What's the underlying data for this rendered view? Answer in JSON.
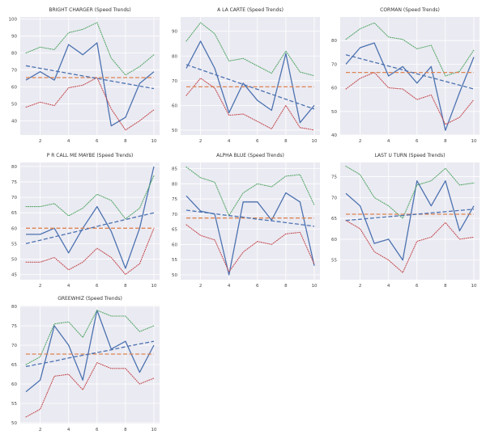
{
  "colors": {
    "plot_bg": "#eaeaf2",
    "grid": "#ffffff",
    "blue": "#4c72b0",
    "orange": "#dd8452",
    "green": "#55a868",
    "red": "#c44e52"
  },
  "chart_data": [
    {
      "type": "line",
      "title": "BRIGHT CHARGER (Speed Trends)",
      "x": [
        1,
        2,
        3,
        4,
        5,
        6,
        7,
        8,
        9,
        10
      ],
      "xticks": [
        2,
        4,
        6,
        8,
        10
      ],
      "xlim": [
        0.6,
        10.4
      ],
      "ylim": [
        31.6,
        101.3
      ],
      "yticks": [
        40,
        50,
        60,
        70,
        80,
        90,
        100
      ],
      "grid": true,
      "series": [
        {
          "style": "solid",
          "color": "#4c72b0",
          "values": [
            64,
            69,
            64,
            85,
            79,
            86,
            37,
            42,
            62,
            69
          ]
        },
        {
          "style": "dotted",
          "color": "#55a868",
          "values": [
            80,
            83.5,
            82,
            92,
            94,
            98,
            77,
            67,
            72,
            79
          ]
        },
        {
          "style": "dotted",
          "color": "#c44e52",
          "values": [
            48,
            51,
            49,
            59.5,
            61,
            65.5,
            47,
            34.5,
            40,
            46.5
          ]
        },
        {
          "style": "dashed",
          "color": "#dd8452",
          "values": [
            65.5,
            65.5,
            65.5,
            65.5,
            65.5,
            65.5,
            65.5,
            65.5,
            65.5,
            65.5
          ]
        },
        {
          "style": "dashed",
          "color": "#4c72b0",
          "values": [
            72.5,
            71,
            69.5,
            68,
            66.5,
            65,
            63.5,
            62,
            60.5,
            59
          ]
        }
      ]
    },
    {
      "type": "line",
      "title": "A LA CARTE (Speed Trends)",
      "x": [
        1,
        2,
        3,
        4,
        5,
        6,
        7,
        8,
        9,
        10
      ],
      "xticks": [
        2,
        4,
        6,
        8,
        10
      ],
      "xlim": [
        0.6,
        10.4
      ],
      "ylim": [
        48,
        95.8
      ],
      "yticks": [
        50,
        60,
        70,
        80,
        90
      ],
      "grid": true,
      "series": [
        {
          "style": "solid",
          "color": "#4c72b0",
          "values": [
            75,
            86,
            75,
            57,
            69,
            62,
            58,
            81,
            53,
            60
          ]
        },
        {
          "style": "dotted",
          "color": "#55a868",
          "values": [
            86,
            93.5,
            89,
            78,
            79,
            76,
            73,
            82,
            73.5,
            72
          ]
        },
        {
          "style": "dotted",
          "color": "#c44e52",
          "values": [
            64,
            71,
            67,
            56,
            56.5,
            53.5,
            50.5,
            60,
            51,
            50
          ]
        },
        {
          "style": "dashed",
          "color": "#dd8452",
          "values": [
            67.5,
            67.5,
            67.5,
            67.5,
            67.5,
            67.5,
            67.5,
            67.5,
            67.5,
            67.5
          ]
        },
        {
          "style": "dashed",
          "color": "#4c72b0",
          "values": [
            76.5,
            74.5,
            72.5,
            70.5,
            68.5,
            66.5,
            64.5,
            62.5,
            60.5,
            58.5
          ]
        }
      ]
    },
    {
      "type": "line",
      "title": "CORMAN (Speed Trends)",
      "x": [
        1,
        2,
        3,
        4,
        5,
        6,
        7,
        8,
        9,
        10
      ],
      "xticks": [
        2,
        4,
        6,
        8,
        10
      ],
      "xlim": [
        0.6,
        10.4
      ],
      "ylim": [
        40,
        90
      ],
      "yticks": [
        40,
        50,
        60,
        70,
        80
      ],
      "grid": true,
      "series": [
        {
          "style": "solid",
          "color": "#4c72b0",
          "values": [
            70,
            77,
            79,
            65,
            69,
            62,
            69,
            42,
            58,
            73
          ]
        },
        {
          "style": "dotted",
          "color": "#55a868",
          "values": [
            80.5,
            85,
            87.5,
            81.5,
            80.5,
            76.5,
            78,
            65,
            67,
            76
          ]
        },
        {
          "style": "dotted",
          "color": "#c44e52",
          "values": [
            59.5,
            64,
            66.5,
            60,
            59.5,
            55,
            57,
            44.5,
            47.5,
            55
          ]
        },
        {
          "style": "dashed",
          "color": "#dd8452",
          "values": [
            66.5,
            66.5,
            66.5,
            66.5,
            66.5,
            66.5,
            66.5,
            66.5,
            66.5,
            66.5
          ]
        },
        {
          "style": "dashed",
          "color": "#4c72b0",
          "values": [
            74,
            72.4,
            70.8,
            69.2,
            67.6,
            65.9,
            64.3,
            62.7,
            61.1,
            59.5
          ]
        }
      ]
    },
    {
      "type": "line",
      "title": "P R CALL ME MAYBE (Speed Trends)",
      "x": [
        1,
        2,
        3,
        4,
        5,
        6,
        7,
        8,
        9,
        10
      ],
      "xticks": [
        2,
        4,
        6,
        8,
        10
      ],
      "xlim": [
        0.6,
        10.4
      ],
      "ylim": [
        43.3,
        81.3
      ],
      "yticks": [
        45,
        50,
        55,
        60,
        65,
        70,
        75,
        80
      ],
      "grid": true,
      "series": [
        {
          "style": "solid",
          "color": "#4c72b0",
          "values": [
            58,
            58,
            60,
            52,
            60,
            67,
            59,
            47,
            60,
            80
          ]
        },
        {
          "style": "dotted",
          "color": "#55a868",
          "values": [
            67,
            67,
            68,
            64,
            66.5,
            71,
            69,
            63,
            66.5,
            77
          ]
        },
        {
          "style": "dotted",
          "color": "#c44e52",
          "values": [
            49,
            49,
            50.5,
            46.5,
            49,
            53.5,
            50.5,
            45,
            48.5,
            60
          ]
        },
        {
          "style": "dashed",
          "color": "#dd8452",
          "values": [
            60,
            60,
            60,
            60,
            60,
            60,
            60,
            60,
            60,
            60
          ]
        },
        {
          "style": "dashed",
          "color": "#4c72b0",
          "values": [
            55,
            56.1,
            57.2,
            58.3,
            59.4,
            60.6,
            61.7,
            62.8,
            63.9,
            65
          ]
        }
      ]
    },
    {
      "type": "line",
      "title": "ALPHA BLUE (Speed Trends)",
      "x": [
        1,
        2,
        3,
        4,
        5,
        6,
        7,
        8,
        9,
        10
      ],
      "xticks": [
        2,
        4,
        6,
        8,
        10
      ],
      "xlim": [
        0.6,
        10.4
      ],
      "ylim": [
        48.4,
        87
      ],
      "yticks": [
        50,
        55,
        60,
        65,
        70,
        75,
        80,
        85
      ],
      "grid": true,
      "series": [
        {
          "style": "solid",
          "color": "#4c72b0",
          "values": [
            76,
            71,
            70,
            50,
            74,
            74,
            68,
            77,
            74,
            53
          ]
        },
        {
          "style": "dotted",
          "color": "#55a868",
          "values": [
            85.5,
            82,
            80.5,
            69.5,
            77,
            80,
            79,
            82.5,
            83,
            73
          ]
        },
        {
          "style": "dotted",
          "color": "#c44e52",
          "values": [
            66.5,
            63,
            61.5,
            51,
            57.5,
            61,
            60,
            63.5,
            64,
            53.5
          ]
        },
        {
          "style": "dashed",
          "color": "#dd8452",
          "values": [
            68.7,
            68.7,
            68.7,
            68.7,
            68.7,
            68.7,
            68.7,
            68.7,
            68.7,
            68.7
          ]
        },
        {
          "style": "dashed",
          "color": "#4c72b0",
          "values": [
            71.3,
            70.7,
            70.1,
            69.5,
            69,
            68.3,
            67.8,
            67.2,
            66.6,
            66
          ]
        }
      ]
    },
    {
      "type": "line",
      "title": "LAST U TURN (Speed Trends)",
      "x": [
        1,
        2,
        3,
        4,
        5,
        6,
        7,
        8,
        9,
        10
      ],
      "xticks": [
        2,
        4,
        6,
        8,
        10
      ],
      "xlim": [
        0.6,
        10.4
      ],
      "ylim": [
        50.3,
        78.4
      ],
      "yticks": [
        55,
        60,
        65,
        70,
        75
      ],
      "grid": true,
      "series": [
        {
          "style": "solid",
          "color": "#4c72b0",
          "values": [
            71,
            68,
            59,
            60,
            55,
            74,
            68,
            74,
            62,
            68
          ]
        },
        {
          "style": "dotted",
          "color": "#55a868",
          "values": [
            77.5,
            75.5,
            70,
            68,
            65,
            73,
            74,
            77,
            73,
            73.5
          ]
        },
        {
          "style": "dotted",
          "color": "#c44e52",
          "values": [
            64.5,
            62.5,
            57,
            55,
            52,
            59.5,
            60.5,
            64,
            60,
            60.5
          ]
        },
        {
          "style": "dashed",
          "color": "#dd8452",
          "values": [
            66,
            66,
            66,
            66,
            66,
            66,
            66,
            66,
            66,
            66
          ]
        },
        {
          "style": "dashed",
          "color": "#4c72b0",
          "values": [
            64.5,
            64.8,
            65.1,
            65.4,
            65.7,
            66,
            66.3,
            66.6,
            66.9,
            67.2
          ]
        }
      ]
    },
    {
      "type": "line",
      "title": "GREEWHIZ (Speed Trends)",
      "x": [
        1,
        2,
        3,
        4,
        5,
        6,
        7,
        8,
        9,
        10
      ],
      "xticks": [
        2,
        4,
        6,
        8,
        10
      ],
      "xlim": [
        0.6,
        10.4
      ],
      "ylim": [
        49.8,
        80.2
      ],
      "yticks": [
        50,
        55,
        60,
        65,
        70,
        75,
        80
      ],
      "grid": true,
      "series": [
        {
          "style": "solid",
          "color": "#4c72b0",
          "values": [
            58,
            61,
            75,
            70,
            61,
            79,
            69,
            71,
            63,
            70
          ]
        },
        {
          "style": "dotted",
          "color": "#55a868",
          "values": [
            65,
            67,
            75.5,
            76,
            72,
            79,
            77.5,
            77.5,
            73.5,
            75
          ]
        },
        {
          "style": "dotted",
          "color": "#c44e52",
          "values": [
            51.5,
            53.5,
            62,
            62.5,
            58.5,
            65.5,
            64,
            64,
            60,
            61.5
          ]
        },
        {
          "style": "dashed",
          "color": "#dd8452",
          "values": [
            67.7,
            67.7,
            67.7,
            67.7,
            67.7,
            67.7,
            67.7,
            67.7,
            67.7,
            67.7
          ]
        },
        {
          "style": "dashed",
          "color": "#4c72b0",
          "values": [
            64.5,
            65.2,
            65.9,
            66.7,
            67.4,
            68.1,
            68.8,
            69.6,
            70.3,
            71
          ]
        }
      ]
    }
  ]
}
